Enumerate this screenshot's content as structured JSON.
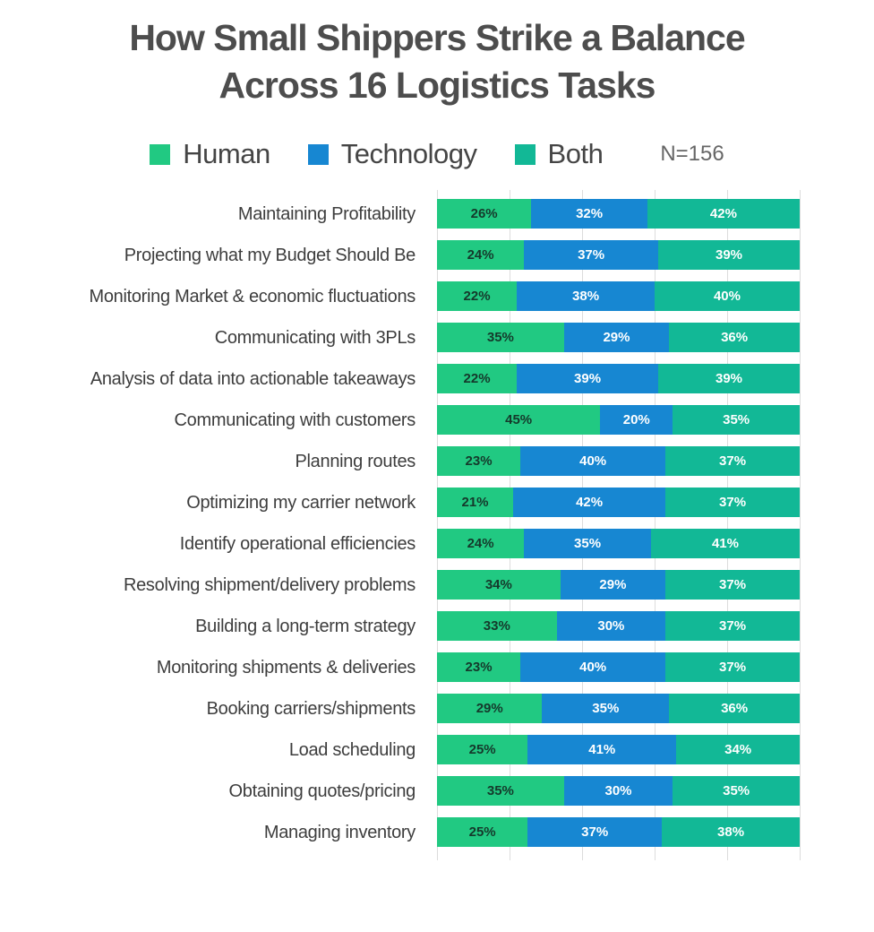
{
  "title": {
    "line1": "How Small Shippers Strike a Balance",
    "line2": "Across 16 Logistics Tasks"
  },
  "legend": {
    "items": [
      {
        "label": "Human",
        "color": "#21c982"
      },
      {
        "label": "Technology",
        "color": "#1787d2"
      },
      {
        "label": "Both",
        "color": "#12b896"
      }
    ],
    "n_label": "N=156"
  },
  "colors": {
    "title_text": "#4d4d4d",
    "category_text": "#3d3d3d",
    "gridline": "#dcdcdc",
    "human": "#21c982",
    "technology": "#1787d2",
    "both": "#12b896",
    "value_text_on_human": "#15392b",
    "value_text_on_technology": "#ffffff",
    "value_text_on_both": "#ffffff"
  },
  "chart_data": {
    "type": "bar",
    "stacked": true,
    "orientation": "horizontal",
    "title": "How Small Shippers Strike a Balance Across 16 Logistics Tasks",
    "sample_size": "N=156",
    "legend_position": "top",
    "grid": true,
    "xlim": [
      0,
      100
    ],
    "gridline_ticks": [
      0,
      20,
      40,
      60,
      80,
      100
    ],
    "value_suffix": "%",
    "categories": [
      "Maintaining Profitability",
      "Projecting what my Budget Should Be",
      "Monitoring Market & economic fluctuations",
      "Communicating with 3PLs",
      "Analysis of data into actionable takeaways",
      "Communicating with customers",
      "Planning routes",
      "Optimizing my carrier network",
      "Identify operational efficiencies",
      "Resolving shipment/delivery problems",
      "Building a long-term strategy",
      "Monitoring shipments & deliveries",
      "Booking carriers/shipments",
      "Load scheduling",
      "Obtaining quotes/pricing",
      "Managing inventory"
    ],
    "series": [
      {
        "name": "Human",
        "color": "#21c982",
        "values": [
          26,
          24,
          22,
          35,
          22,
          45,
          23,
          21,
          24,
          34,
          33,
          23,
          29,
          25,
          35,
          25
        ]
      },
      {
        "name": "Technology",
        "color": "#1787d2",
        "values": [
          32,
          37,
          38,
          29,
          39,
          20,
          40,
          42,
          35,
          29,
          30,
          40,
          35,
          41,
          30,
          37
        ]
      },
      {
        "name": "Both",
        "color": "#12b896",
        "values": [
          42,
          39,
          40,
          36,
          39,
          35,
          37,
          37,
          41,
          37,
          37,
          37,
          36,
          34,
          35,
          38
        ]
      }
    ]
  }
}
